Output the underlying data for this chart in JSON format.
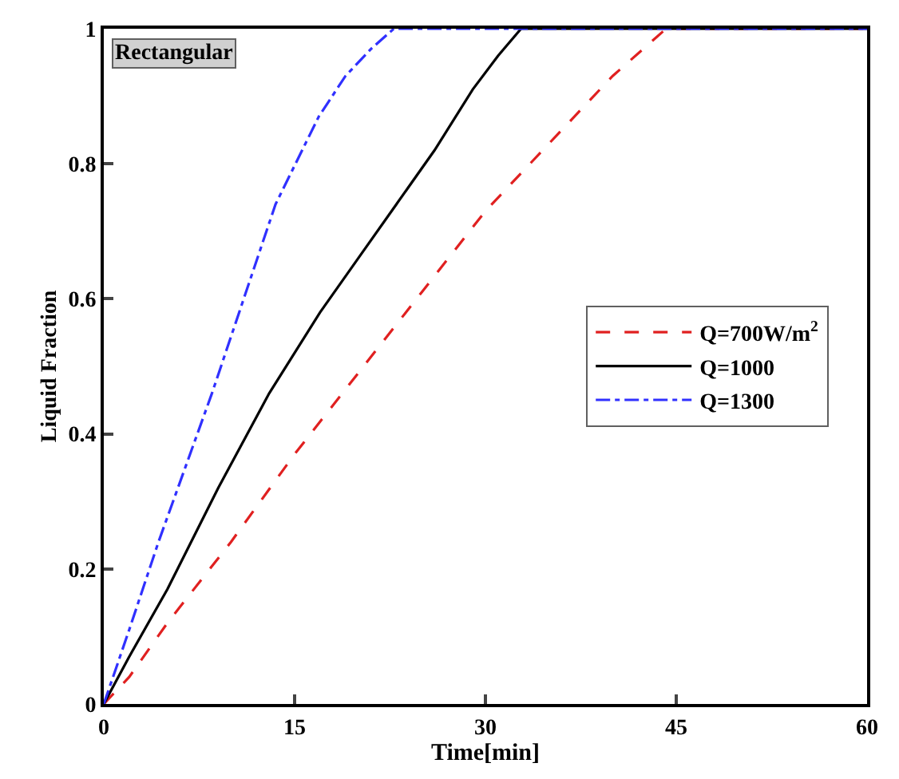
{
  "chart_data": {
    "type": "line",
    "xlabel": "Time[min]",
    "ylabel": "Liquid Fraction",
    "annotations": [
      "Rectangular"
    ],
    "xlim": [
      0,
      60
    ],
    "xticks": [
      0,
      15,
      30,
      45,
      60
    ],
    "ylim": [
      0,
      1
    ],
    "yticks": [
      0,
      0.2,
      0.4,
      0.6,
      0.8,
      1
    ],
    "legend": "right",
    "marker": "none",
    "series": [
      {
        "name": "Q=700W/m$^{2}$",
        "color": "#e02020",
        "line_style": "dashed",
        "x": [
          0,
          2,
          5,
          10,
          15,
          20,
          25,
          30,
          35,
          40,
          44.2,
          60
        ],
        "values": [
          0,
          0.04,
          0.12,
          0.24,
          0.37,
          0.49,
          0.61,
          0.73,
          0.83,
          0.93,
          1,
          1
        ]
      },
      {
        "name": "Q=1000",
        "color": "#000000",
        "line_style": "solid",
        "x": [
          0,
          2,
          5,
          9,
          13,
          17,
          20,
          23,
          26,
          29,
          31,
          32.8,
          60
        ],
        "values": [
          0,
          0.07,
          0.17,
          0.32,
          0.46,
          0.58,
          0.66,
          0.74,
          0.82,
          0.91,
          0.96,
          1,
          1
        ]
      },
      {
        "name": "Q=1300",
        "color": "#3030ff",
        "line_style": "dashdot",
        "x": [
          0,
          2,
          4.3,
          8.5,
          11,
          13.5,
          16.9,
          19,
          21,
          22.8,
          60
        ],
        "values": [
          0,
          0.11,
          0.24,
          0.46,
          0.6,
          0.74,
          0.87,
          0.93,
          0.97,
          1,
          1
        ]
      }
    ]
  }
}
